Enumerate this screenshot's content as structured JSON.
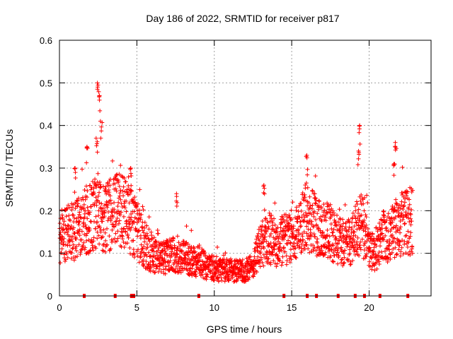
{
  "chart_data": {
    "type": "scatter",
    "title": "Day 186 of 2022, SRMTID for receiver p817",
    "xlabel": "GPS time / hours",
    "ylabel": "SRMTID / TECUs",
    "xlim": [
      0,
      24
    ],
    "ylim": [
      0,
      0.6
    ],
    "x_ticks": [
      0,
      5,
      10,
      15,
      20
    ],
    "y_ticks": [
      0,
      0.1,
      0.2,
      0.3,
      0.4,
      0.5,
      0.6
    ],
    "x_tick_labels": [
      "0",
      "5",
      "10",
      "15",
      "20"
    ],
    "y_tick_labels": [
      "0",
      "0.1",
      "0.2",
      "0.3",
      "0.4",
      "0.5",
      "0.6"
    ],
    "grid": true,
    "marker": "+",
    "color": "#ff0000",
    "series": [
      {
        "name": "SRMTID",
        "trend": [
          [
            0,
            0.14
          ],
          [
            0.5,
            0.15
          ],
          [
            1,
            0.15
          ],
          [
            1.5,
            0.17
          ],
          [
            2,
            0.18
          ],
          [
            2.5,
            0.2
          ],
          [
            3,
            0.18
          ],
          [
            3.5,
            0.2
          ],
          [
            4,
            0.2
          ],
          [
            4.5,
            0.18
          ],
          [
            5,
            0.15
          ],
          [
            5.5,
            0.12
          ],
          [
            6,
            0.1
          ],
          [
            6.5,
            0.09
          ],
          [
            7,
            0.09
          ],
          [
            7.5,
            0.1
          ],
          [
            8,
            0.09
          ],
          [
            8.5,
            0.08
          ],
          [
            9,
            0.08
          ],
          [
            9.5,
            0.07
          ],
          [
            10,
            0.065
          ],
          [
            10.5,
            0.06
          ],
          [
            11,
            0.06
          ],
          [
            11.5,
            0.06
          ],
          [
            12,
            0.06
          ],
          [
            12.5,
            0.07
          ],
          [
            13,
            0.12
          ],
          [
            13.5,
            0.14
          ],
          [
            14,
            0.12
          ],
          [
            14.5,
            0.13
          ],
          [
            15,
            0.14
          ],
          [
            15.5,
            0.15
          ],
          [
            16,
            0.19
          ],
          [
            16.5,
            0.17
          ],
          [
            17,
            0.16
          ],
          [
            17.5,
            0.15
          ],
          [
            18,
            0.13
          ],
          [
            18.5,
            0.12
          ],
          [
            19,
            0.14
          ],
          [
            19.5,
            0.18
          ],
          [
            20,
            0.1
          ],
          [
            20.5,
            0.11
          ],
          [
            21,
            0.14
          ],
          [
            21.5,
            0.15
          ],
          [
            22,
            0.17
          ],
          [
            22.5,
            0.17
          ],
          [
            22.8,
            0.18
          ]
        ],
        "spikes": [
          [
            2.5,
            0.5
          ],
          [
            2.6,
            0.47
          ],
          [
            2.7,
            0.41
          ],
          [
            1.8,
            0.35
          ],
          [
            2.4,
            0.37
          ],
          [
            4.6,
            0.3
          ],
          [
            7.6,
            0.24
          ],
          [
            13.2,
            0.26
          ],
          [
            16,
            0.33
          ],
          [
            19.4,
            0.4
          ],
          [
            19.3,
            0.34
          ],
          [
            21.7,
            0.36
          ],
          [
            21.6,
            0.31
          ],
          [
            1,
            0.3
          ]
        ]
      }
    ],
    "gap_markers_x": [
      1.6,
      3.6,
      4.65,
      4.8,
      9,
      14.5,
      16,
      16.6,
      18,
      19.1,
      19.7,
      20.7,
      22.5
    ]
  }
}
